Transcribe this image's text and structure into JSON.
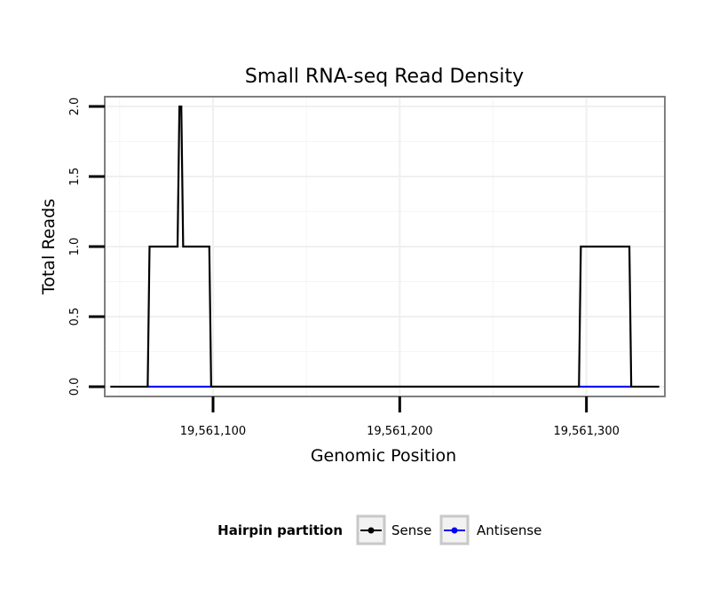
{
  "chart_data": {
    "type": "line",
    "title": "Small RNA-seq Read Density",
    "xlabel": "Genomic Position",
    "ylabel": "Total Reads",
    "xlim": [
      19561042,
      19561342
    ],
    "ylim": [
      -0.07,
      2.07
    ],
    "x_ticks": [
      {
        "value": 19561100,
        "label": "19,561,100"
      },
      {
        "value": 19561200,
        "label": "19,561,200"
      },
      {
        "value": 19561300,
        "label": "19,561,300"
      }
    ],
    "y_ticks": [
      {
        "value": 0,
        "label": "0.0"
      },
      {
        "value": 0.5,
        "label": "0.5"
      },
      {
        "value": 1,
        "label": "1.0"
      },
      {
        "value": 1.5,
        "label": "1.5"
      },
      {
        "value": 2,
        "label": "2.0"
      }
    ],
    "grid": true,
    "legend": {
      "title": "Hairpin partition",
      "position": "bottom"
    },
    "series": [
      {
        "name": "Sense",
        "color": "#000000",
        "points": [
          [
            19561045,
            0
          ],
          [
            19561065,
            0
          ],
          [
            19561066,
            1
          ],
          [
            19561081,
            1
          ],
          [
            19561082,
            2
          ],
          [
            19561083,
            2
          ],
          [
            19561084,
            1
          ],
          [
            19561098,
            1
          ],
          [
            19561099,
            0
          ],
          [
            19561296,
            0
          ],
          [
            19561297,
            1
          ],
          [
            19561323,
            1
          ],
          [
            19561324,
            0
          ],
          [
            19561339,
            0
          ]
        ]
      },
      {
        "name": "Antisense",
        "color": "#0000ff",
        "points": [
          [
            19561065,
            0
          ],
          [
            19561099,
            0
          ],
          [
            19561296,
            0
          ],
          [
            19561324,
            0
          ]
        ]
      }
    ]
  }
}
